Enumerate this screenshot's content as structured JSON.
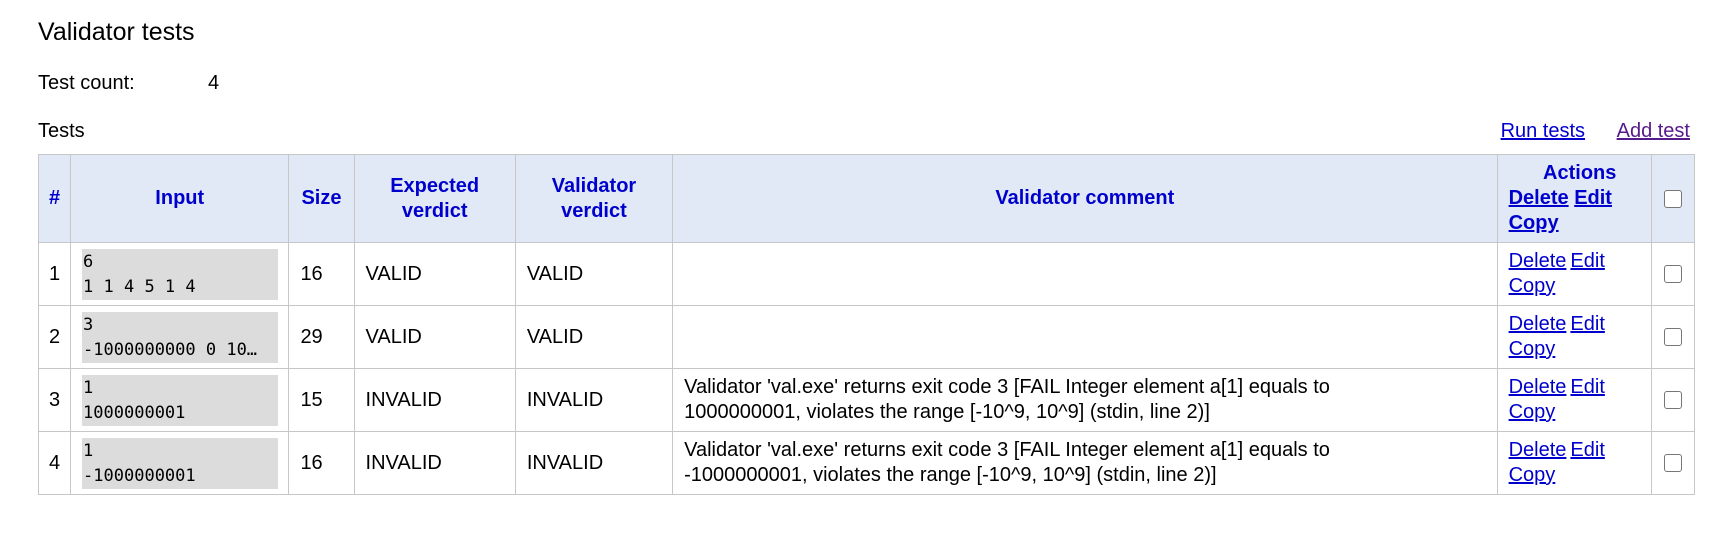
{
  "page": {
    "title": "Validator tests",
    "test_count_label": "Test count:",
    "test_count_value": "4",
    "tests_label": "Tests",
    "run_tests_label": "Run tests",
    "add_test_label": "Add test"
  },
  "colors": {
    "header_bg": "#e1e9f7",
    "link": "#0000cc",
    "visited_link": "#551a8b",
    "input_bg": "#dcdcdc"
  },
  "table": {
    "headers": {
      "num": "#",
      "input": "Input",
      "size": "Size",
      "expected_line1": "Expected",
      "expected_line2": "verdict",
      "validator_line1": "Validator",
      "validator_line2": "verdict",
      "comment": "Validator comment",
      "actions": "Actions",
      "delete": "Delete",
      "edit": "Edit",
      "copy": "Copy"
    },
    "rows": [
      {
        "num": "1",
        "input_line1": "6",
        "input_line2": "1 1 4 5 1 4",
        "size": "16",
        "expected": "VALID",
        "validator": "VALID",
        "comment_line1": "",
        "comment_line2": "",
        "delete": "Delete",
        "edit": "Edit",
        "copy": "Copy"
      },
      {
        "num": "2",
        "input_line1": "3",
        "input_line2": "-1000000000 0 10…",
        "size": "29",
        "expected": "VALID",
        "validator": "VALID",
        "comment_line1": "",
        "comment_line2": "",
        "delete": "Delete",
        "edit": "Edit",
        "copy": "Copy"
      },
      {
        "num": "3",
        "input_line1": "1",
        "input_line2": "1000000001",
        "size": "15",
        "expected": "INVALID",
        "validator": "INVALID",
        "comment_line1": "Validator 'val.exe' returns exit code 3 [FAIL Integer element a[1] equals to",
        "comment_line2": "1000000001, violates the range [-10^9, 10^9] (stdin, line 2)]",
        "delete": "Delete",
        "edit": "Edit",
        "copy": "Copy"
      },
      {
        "num": "4",
        "input_line1": "1",
        "input_line2": "-1000000001",
        "size": "16",
        "expected": "INVALID",
        "validator": "INVALID",
        "comment_line1": "Validator 'val.exe' returns exit code 3 [FAIL Integer element a[1] equals to",
        "comment_line2": "-1000000001, violates the range [-10^9, 10^9] (stdin, line 2)]",
        "delete": "Delete",
        "edit": "Edit",
        "copy": "Copy"
      }
    ]
  }
}
